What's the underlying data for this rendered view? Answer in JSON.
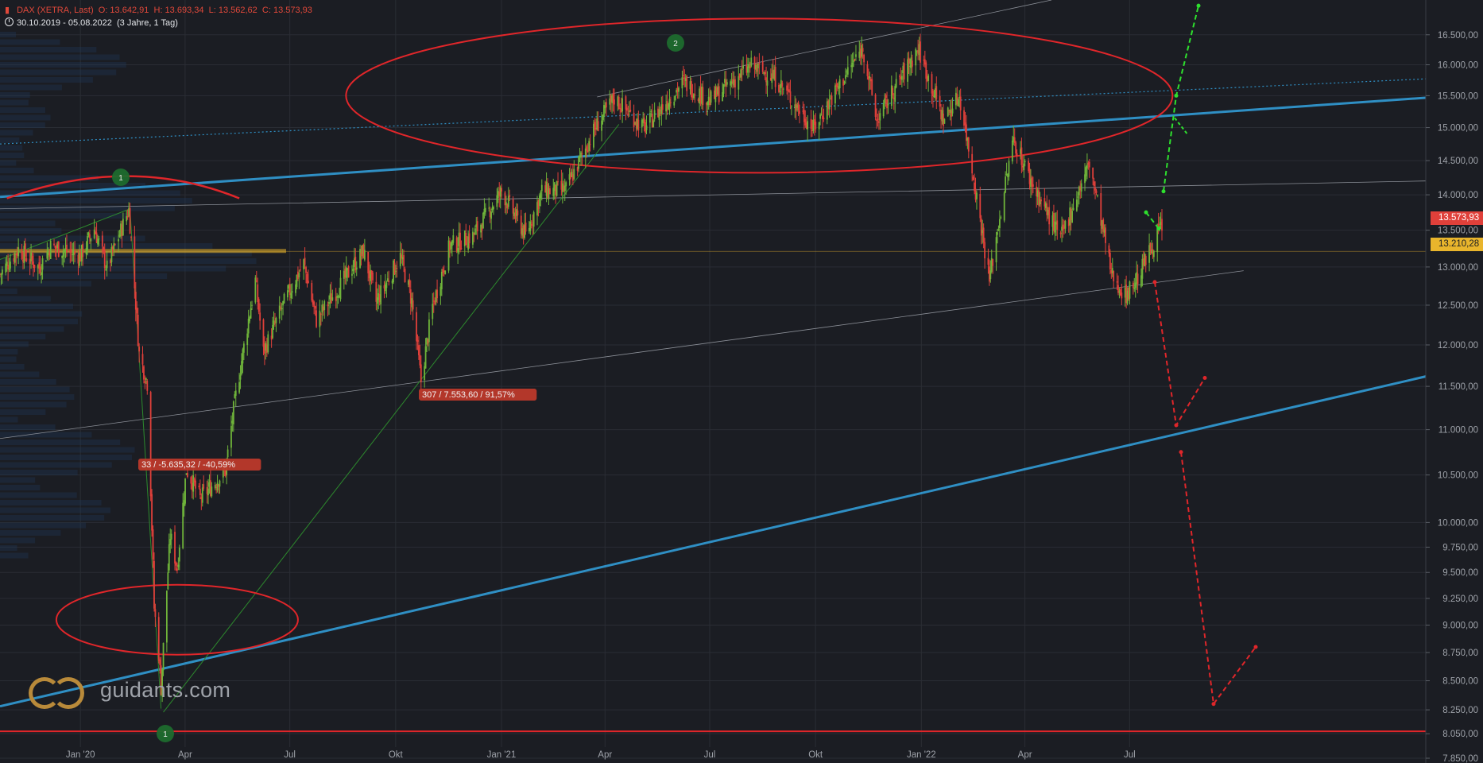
{
  "header": {
    "symbol_icon": "candlestick-icon",
    "instrument": "DAX (XETRA, Last)",
    "open": "O: 13.642,91",
    "high": "H: 13.693,34",
    "low": "L: 13.562,62",
    "close": "C: 13.573,93",
    "range": "30.10.2019 - 05.08.2022",
    "span": "(3 Jahre, 1 Tag)"
  },
  "watermark": {
    "text": "guidants.com"
  },
  "colors": {
    "background": "#1b1d23",
    "up_candle": "#6fb43a",
    "down_candle": "#e0403a",
    "trend_blue": "#2f8fc4",
    "ellipse_red": "#e0262a",
    "support_red": "#e0262a",
    "projection_green": "#2ee02e",
    "projection_red": "#e0262a",
    "highlight_gold": "#e9b52c"
  },
  "chart_data": {
    "type": "candlestick",
    "x_range": [
      "2019-10-30",
      "2022-08-05"
    ],
    "x_ticks": [
      "Jan '20",
      "Apr",
      "Jul",
      "Okt",
      "Jan '21",
      "Apr",
      "Jul",
      "Okt",
      "Jan '22",
      "Apr",
      "Jul"
    ],
    "y_scale": "log",
    "y_range": [
      7850,
      17100
    ],
    "y_ticks": [
      "16.500,00",
      "16.000,00",
      "15.500,00",
      "15.000,00",
      "14.500,00",
      "14.000,00",
      "13.500,00",
      "13.000,00",
      "12.500,00",
      "12.000,00",
      "11.500,00",
      "11.000,00",
      "10.500,00",
      "10.000,00",
      "9.750,00",
      "9.500,00",
      "9.250,00",
      "9.000,00",
      "8.750,00",
      "8.500,00",
      "8.250,00",
      "8.050,00",
      "7.850,00"
    ],
    "last_price": "13.573,93",
    "highlight_level": "13.210,28",
    "annotations": [
      {
        "label": "33 / -5.635,32 / -40,59%"
      },
      {
        "label": "307 / 7.553,60 / 91,57%"
      }
    ],
    "markers": [
      {
        "label": "1"
      },
      {
        "label": "2"
      },
      {
        "label": "1"
      }
    ],
    "swing_points": [
      [
        "2019-10-30",
        12900
      ],
      [
        "2019-11-15",
        13240
      ],
      [
        "2019-12-03",
        12990
      ],
      [
        "2019-12-13",
        13280
      ],
      [
        "2020-01-08",
        13150
      ],
      [
        "2020-01-20",
        13520
      ],
      [
        "2020-01-31",
        12980
      ],
      [
        "2020-02-19",
        13790
      ],
      [
        "2020-02-28",
        11890
      ],
      [
        "2020-03-06",
        11540
      ],
      [
        "2020-03-12",
        9160
      ],
      [
        "2020-03-16",
        8742
      ],
      [
        "2020-03-18",
        8442
      ],
      [
        "2020-03-26",
        9870
      ],
      [
        "2020-04-01",
        9540
      ],
      [
        "2020-04-09",
        10560
      ],
      [
        "2020-04-21",
        10250
      ],
      [
        "2020-05-13",
        10540
      ],
      [
        "2020-05-20",
        11220
      ],
      [
        "2020-06-08",
        12820
      ],
      [
        "2020-06-15",
        11910
      ],
      [
        "2020-07-03",
        12530
      ],
      [
        "2020-07-20",
        13050
      ],
      [
        "2020-07-31",
        12310
      ],
      [
        "2020-08-21",
        12760
      ],
      [
        "2020-09-03",
        13060
      ],
      [
        "2020-09-10",
        13210
      ],
      [
        "2020-09-21",
        12540
      ],
      [
        "2020-10-12",
        13140
      ],
      [
        "2020-10-22",
        12550
      ],
      [
        "2020-10-30",
        11560
      ],
      [
        "2020-11-09",
        12480
      ],
      [
        "2020-11-24",
        13290
      ],
      [
        "2020-12-14",
        13420
      ],
      [
        "2021-01-08",
        14050
      ],
      [
        "2021-01-29",
        13430
      ],
      [
        "2021-02-12",
        14050
      ],
      [
        "2021-03-05",
        14080
      ],
      [
        "2021-03-31",
        15010
      ],
      [
        "2021-04-16",
        15460
      ],
      [
        "2021-05-12",
        14990
      ],
      [
        "2021-06-15",
        15720
      ],
      [
        "2021-07-08",
        15420
      ],
      [
        "2021-08-13",
        15980
      ],
      [
        "2021-09-03",
        15780
      ],
      [
        "2021-10-06",
        14980
      ],
      [
        "2021-11-18",
        16290
      ],
      [
        "2021-11-30",
        15100
      ],
      [
        "2022-01-05",
        16270
      ],
      [
        "2022-01-27",
        15120
      ],
      [
        "2022-02-10",
        15500
      ],
      [
        "2022-03-08",
        12830
      ],
      [
        "2022-03-29",
        14820
      ],
      [
        "2022-04-14",
        14160
      ],
      [
        "2022-05-09",
        13380
      ],
      [
        "2022-06-03",
        14460
      ],
      [
        "2022-06-22",
        12910
      ],
      [
        "2022-07-04",
        12620
      ],
      [
        "2022-07-15",
        12860
      ],
      [
        "2022-08-05",
        13574
      ]
    ],
    "overlays": {
      "trend_channel_blue": [
        [
          [
            "2019-10-30",
            13970
          ],
          [
            "2022-08-05",
            15390
          ]
        ],
        [
          [
            "2019-10-30",
            8280
          ],
          [
            "2022-08-05",
            11560
          ]
        ]
      ],
      "support_line": 8070,
      "projections": {
        "bullish": [
          13573,
          14050,
          15200,
          16700
        ],
        "bearish": [
          12800,
          11050,
          10750,
          8300
        ]
      }
    }
  }
}
